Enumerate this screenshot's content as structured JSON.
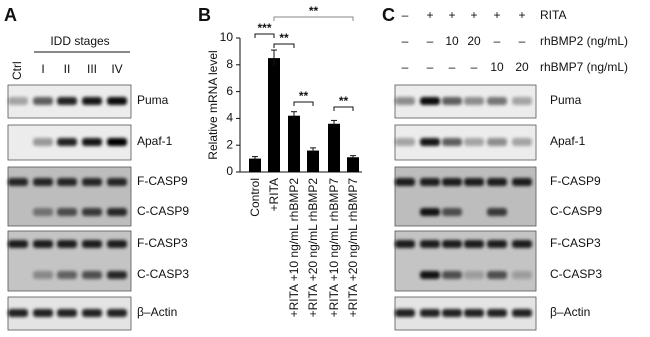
{
  "panel_a": {
    "letter": "A",
    "group_label": "IDD stages",
    "lanes": [
      "Ctrl",
      "I",
      "II",
      "III",
      "IV"
    ],
    "blots": [
      "Puma",
      "Apaf-1",
      "F-CASP9",
      "C-CASP9",
      "F-CASP3",
      "C-CASP3",
      "β–Actin"
    ]
  },
  "chart_data": {
    "type": "bar",
    "panel_letter": "B",
    "y_label": "Relative mRNA level",
    "categories": [
      "Control",
      "+RITA",
      "+RITA +10 ng/mL rhBMP2",
      "+RITA +20 ng/mL rhBMP2",
      "+RITA +10 ng/mL rhBMP7",
      "+RITA +20 ng/mL rhBMP7"
    ],
    "values": [
      1.0,
      8.5,
      4.2,
      1.6,
      3.6,
      1.1
    ],
    "errors": [
      0.15,
      0.6,
      0.3,
      0.2,
      0.25,
      0.12
    ],
    "color": "#000000",
    "ylim": [
      0,
      10
    ],
    "yticks": [
      0,
      2,
      4,
      6,
      8,
      10
    ],
    "grid": false,
    "annotations": [
      "***",
      "**",
      "**",
      "**",
      "**"
    ]
  },
  "panel_c": {
    "letter": "C",
    "treatments": [
      {
        "name": "RITA",
        "lanes": [
          "–",
          "+",
          "+",
          "+",
          "+",
          "+"
        ]
      },
      {
        "name": "rhBMP2 (ng/mL)",
        "lanes": [
          "–",
          "–",
          "10",
          "20",
          "–",
          "–"
        ]
      },
      {
        "name": "rhBMP7 (ng/mL)",
        "lanes": [
          "–",
          "–",
          "–",
          "–",
          "10",
          "20"
        ]
      }
    ],
    "blots": [
      "Puma",
      "Apaf-1",
      "F-CASP9",
      "C-CASP9",
      "F-CASP3",
      "C-CASP3",
      "β–Actin"
    ]
  }
}
